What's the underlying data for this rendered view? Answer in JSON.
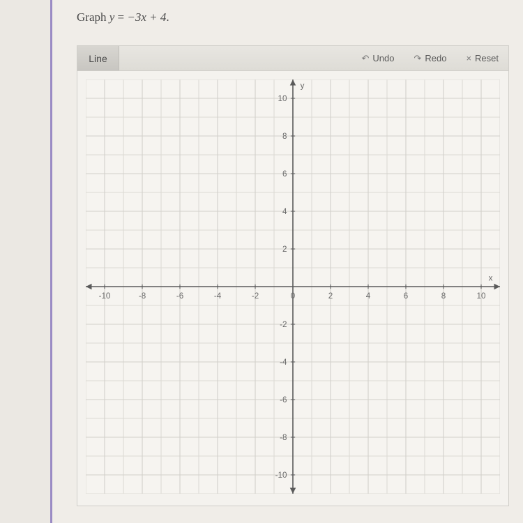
{
  "prompt": {
    "prefix": "Graph ",
    "equation_lhs": "y",
    "equals": " = ",
    "equation_rhs": "−3x + 4",
    "suffix": "."
  },
  "toolbar": {
    "line_label": "Line",
    "undo_label": "Undo",
    "redo_label": "Redo",
    "reset_label": "Reset"
  },
  "graph": {
    "type": "scatter",
    "background_color": "#f6f4f0",
    "grid_color": "#dcdad4",
    "major_grid_color": "#d2d0ca",
    "axis_color": "#5a5a5a",
    "tick_font_color": "#6a6a6a",
    "tick_fontsize": 11,
    "x_label": "x",
    "y_label": "y",
    "xlim": [
      -11,
      11
    ],
    "ylim": [
      -11,
      11
    ],
    "tick_step": 2,
    "x_ticks": [
      -10,
      -8,
      -6,
      -4,
      -2,
      0,
      2,
      4,
      6,
      8,
      10
    ],
    "y_ticks": [
      -10,
      -8,
      -6,
      -4,
      -2,
      2,
      4,
      6,
      8,
      10
    ],
    "aspect_ratio": 1
  }
}
